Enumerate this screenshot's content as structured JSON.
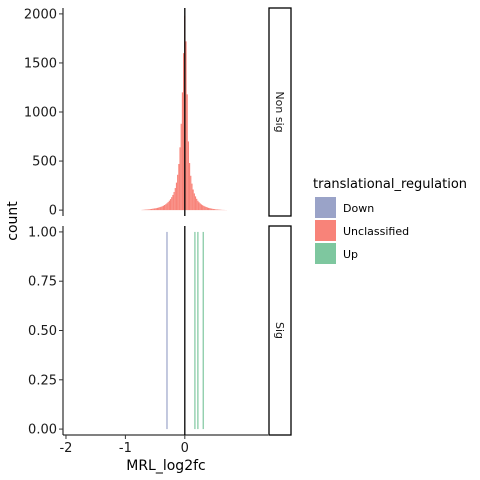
{
  "chart_data": {
    "type": "histogram",
    "xlabel": "MRL_log2fc",
    "ylabel": "count",
    "x_ticks": [
      -2,
      -1,
      0
    ],
    "x_tick_labels": [
      "-2",
      "-1",
      "0"
    ],
    "xlim": [
      -2.05,
      1.4
    ],
    "vline_x": 0,
    "legend": {
      "title": "translational_regulation",
      "placement": "right",
      "entries": [
        {
          "label": "Down",
          "color": "#9aa3c8"
        },
        {
          "label": "Unclassified",
          "color": "#f88379"
        },
        {
          "label": "Up",
          "color": "#7ec79f"
        }
      ]
    },
    "panels": [
      {
        "strip": "Non sig",
        "ylim": [
          -60,
          2060
        ],
        "y_ticks": [
          0,
          500,
          1000,
          1500,
          2000
        ],
        "y_tick_labels": [
          "0",
          "500",
          "1000",
          "1500",
          "2000"
        ],
        "series": [
          {
            "name": "Unclassified",
            "color": "#f88379",
            "bin_width": 0.02,
            "bins": [
              {
                "x": -0.72,
                "count": 2
              },
              {
                "x": -0.7,
                "count": 3
              },
              {
                "x": -0.68,
                "count": 4
              },
              {
                "x": -0.66,
                "count": 5
              },
              {
                "x": -0.64,
                "count": 6
              },
              {
                "x": -0.62,
                "count": 7
              },
              {
                "x": -0.6,
                "count": 8
              },
              {
                "x": -0.58,
                "count": 10
              },
              {
                "x": -0.56,
                "count": 12
              },
              {
                "x": -0.54,
                "count": 14
              },
              {
                "x": -0.52,
                "count": 16
              },
              {
                "x": -0.5,
                "count": 18
              },
              {
                "x": -0.48,
                "count": 20
              },
              {
                "x": -0.46,
                "count": 23
              },
              {
                "x": -0.44,
                "count": 26
              },
              {
                "x": -0.42,
                "count": 30
              },
              {
                "x": -0.4,
                "count": 34
              },
              {
                "x": -0.38,
                "count": 39
              },
              {
                "x": -0.36,
                "count": 45
              },
              {
                "x": -0.34,
                "count": 52
              },
              {
                "x": -0.32,
                "count": 60
              },
              {
                "x": -0.3,
                "count": 70
              },
              {
                "x": -0.28,
                "count": 82
              },
              {
                "x": -0.26,
                "count": 96
              },
              {
                "x": -0.24,
                "count": 112
              },
              {
                "x": -0.22,
                "count": 132
              },
              {
                "x": -0.2,
                "count": 155
              },
              {
                "x": -0.18,
                "count": 185
              },
              {
                "x": -0.16,
                "count": 225
              },
              {
                "x": -0.14,
                "count": 280
              },
              {
                "x": -0.12,
                "count": 360
              },
              {
                "x": -0.1,
                "count": 470
              },
              {
                "x": -0.08,
                "count": 640
              },
              {
                "x": -0.06,
                "count": 880
              },
              {
                "x": -0.04,
                "count": 1200
              },
              {
                "x": -0.02,
                "count": 1600
              },
              {
                "x": 0.0,
                "count": 1980
              },
              {
                "x": 0.02,
                "count": 1720
              },
              {
                "x": 0.04,
                "count": 1180
              },
              {
                "x": 0.06,
                "count": 700
              },
              {
                "x": 0.08,
                "count": 480
              },
              {
                "x": 0.1,
                "count": 350
              },
              {
                "x": 0.12,
                "count": 270
              },
              {
                "x": 0.14,
                "count": 210
              },
              {
                "x": 0.16,
                "count": 170
              },
              {
                "x": 0.18,
                "count": 140
              },
              {
                "x": 0.2,
                "count": 115
              },
              {
                "x": 0.22,
                "count": 95
              },
              {
                "x": 0.24,
                "count": 80
              },
              {
                "x": 0.26,
                "count": 68
              },
              {
                "x": 0.28,
                "count": 58
              },
              {
                "x": 0.3,
                "count": 50
              },
              {
                "x": 0.32,
                "count": 43
              },
              {
                "x": 0.34,
                "count": 37
              },
              {
                "x": 0.36,
                "count": 32
              },
              {
                "x": 0.38,
                "count": 27
              },
              {
                "x": 0.4,
                "count": 23
              },
              {
                "x": 0.42,
                "count": 20
              },
              {
                "x": 0.44,
                "count": 17
              },
              {
                "x": 0.46,
                "count": 14
              },
              {
                "x": 0.48,
                "count": 12
              },
              {
                "x": 0.5,
                "count": 10
              },
              {
                "x": 0.52,
                "count": 8
              },
              {
                "x": 0.54,
                "count": 7
              },
              {
                "x": 0.56,
                "count": 6
              },
              {
                "x": 0.58,
                "count": 5
              },
              {
                "x": 0.6,
                "count": 4
              },
              {
                "x": 0.62,
                "count": 3
              },
              {
                "x": 0.64,
                "count": 2
              },
              {
                "x": 0.66,
                "count": 2
              },
              {
                "x": 0.68,
                "count": 1
              },
              {
                "x": 0.7,
                "count": 1
              }
            ]
          }
        ]
      },
      {
        "strip": "Sig",
        "ylim": [
          -0.03,
          1.03
        ],
        "y_ticks": [
          0,
          0.25,
          0.5,
          0.75,
          1
        ],
        "y_tick_labels": [
          "0.00",
          "0.25",
          "0.50",
          "0.75",
          "1.00"
        ],
        "series": [
          {
            "name": "Down",
            "color": "#9aa3c8",
            "bin_width": 0.02,
            "bins": [
              {
                "x": -0.3,
                "count": 1
              }
            ]
          },
          {
            "name": "Up",
            "color": "#7ec79f",
            "bin_width": 0.02,
            "bins": [
              {
                "x": 0.17,
                "count": 1
              },
              {
                "x": 0.22,
                "count": 1
              },
              {
                "x": 0.31,
                "count": 1
              }
            ]
          }
        ]
      }
    ]
  }
}
